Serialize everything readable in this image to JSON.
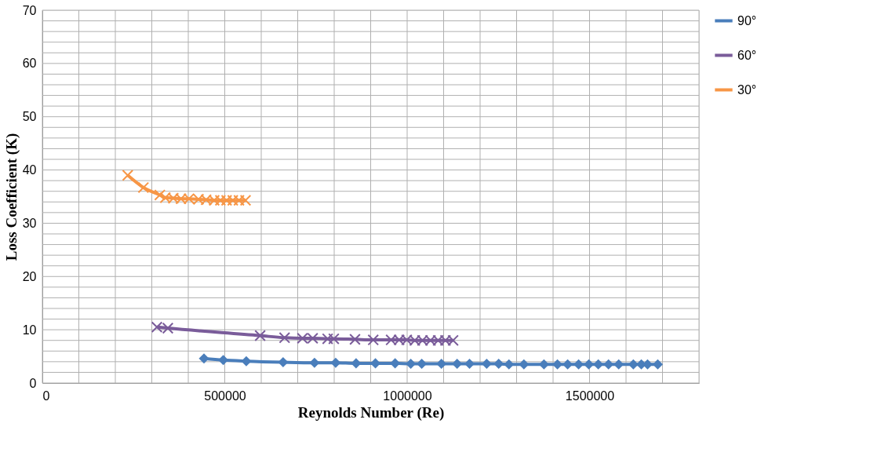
{
  "chart_data": {
    "type": "line",
    "xlabel": "Reynolds Number (Re)",
    "ylabel": "Loss Coefficient (K)",
    "xlim": [
      0,
      1800000
    ],
    "ylim": [
      0,
      70
    ],
    "xticks": [
      0,
      {
        "value": 100000,
        "label": null
      },
      {
        "value": 200000,
        "label": null
      },
      {
        "value": 300000,
        "label": null
      },
      {
        "value": 400000,
        "label": null
      },
      500000,
      {
        "value": 600000,
        "label": null
      },
      {
        "value": 700000,
        "label": null
      },
      {
        "value": 800000,
        "label": null
      },
      {
        "value": 900000,
        "label": null
      },
      1000000,
      {
        "value": 1100000,
        "label": null
      },
      {
        "value": 1200000,
        "label": null
      },
      {
        "value": 1300000,
        "label": null
      },
      {
        "value": 1400000,
        "label": null
      },
      1500000,
      {
        "value": 1600000,
        "label": null
      },
      {
        "value": 1700000,
        "label": null
      },
      {
        "value": 1800000,
        "label": null
      }
    ],
    "yticks": [
      0,
      {
        "value": 2,
        "label": null
      },
      {
        "value": 4,
        "label": null
      },
      {
        "value": 6,
        "label": null
      },
      {
        "value": 8,
        "label": null
      },
      10,
      {
        "value": 12,
        "label": null
      },
      {
        "value": 14,
        "label": null
      },
      {
        "value": 16,
        "label": null
      },
      {
        "value": 18,
        "label": null
      },
      20,
      {
        "value": 22,
        "label": null
      },
      {
        "value": 24,
        "label": null
      },
      {
        "value": 26,
        "label": null
      },
      {
        "value": 28,
        "label": null
      },
      30,
      {
        "value": 32,
        "label": null
      },
      {
        "value": 34,
        "label": null
      },
      {
        "value": 36,
        "label": null
      },
      {
        "value": 38,
        "label": null
      },
      40,
      {
        "value": 42,
        "label": null
      },
      {
        "value": 44,
        "label": null
      },
      {
        "value": 46,
        "label": null
      },
      {
        "value": 48,
        "label": null
      },
      50,
      {
        "value": 52,
        "label": null
      },
      {
        "value": 54,
        "label": null
      },
      {
        "value": 56,
        "label": null
      },
      {
        "value": 58,
        "label": null
      },
      60,
      {
        "value": 62,
        "label": null
      },
      {
        "value": 64,
        "label": null
      },
      {
        "value": 66,
        "label": null
      },
      {
        "value": 68,
        "label": null
      },
      70
    ],
    "grid": true,
    "legend": "right",
    "series": [
      {
        "name": "90°",
        "color": "#4a7ebb",
        "marker": "diamond",
        "x": [
          443000,
          496000,
          559000,
          660000,
          746000,
          804000,
          860000,
          913000,
          967000,
          1010000,
          1040000,
          1094000,
          1137000,
          1171000,
          1218000,
          1251000,
          1279000,
          1320000,
          1375000,
          1412000,
          1440000,
          1470000,
          1498000,
          1524000,
          1552000,
          1580000,
          1620000,
          1642000,
          1659000,
          1687000
        ],
        "values": [
          4.6,
          4.3,
          4.1,
          3.9,
          3.8,
          3.8,
          3.7,
          3.7,
          3.7,
          3.6,
          3.6,
          3.6,
          3.6,
          3.6,
          3.6,
          3.6,
          3.5,
          3.5,
          3.5,
          3.5,
          3.5,
          3.5,
          3.5,
          3.5,
          3.5,
          3.5,
          3.5,
          3.5,
          3.5,
          3.5
        ]
      },
      {
        "name": "60°",
        "color": "#7a5c9a",
        "marker": "cross",
        "x": [
          314000,
          344000,
          597000,
          664000,
          713000,
          741000,
          782000,
          799000,
          857000,
          907000,
          956000,
          978000,
          999000,
          1021000,
          1042000,
          1064000,
          1085000,
          1105000,
          1126000
        ],
        "values": [
          10.5,
          10.3,
          8.9,
          8.5,
          8.4,
          8.4,
          8.3,
          8.3,
          8.2,
          8.1,
          8.1,
          8.1,
          8.1,
          8.0,
          8.0,
          8.0,
          8.0,
          8.0,
          8.0
        ]
      },
      {
        "name": "30°",
        "color": "#f79646",
        "marker": "cross",
        "x": [
          234000,
          277000,
          322000,
          337000,
          359000,
          380000,
          402000,
          428000,
          449000,
          471000,
          488000,
          505000,
          522000,
          539000,
          557000
        ],
        "values": [
          39.0,
          36.7,
          35.3,
          34.8,
          34.7,
          34.6,
          34.6,
          34.5,
          34.4,
          34.3,
          34.3,
          34.3,
          34.3,
          34.3,
          34.3
        ]
      }
    ]
  }
}
